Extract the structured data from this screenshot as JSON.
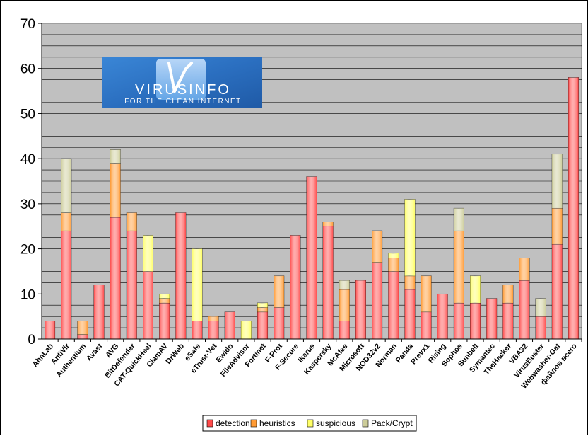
{
  "chart_data": {
    "type": "bar",
    "stacked": true,
    "title": "",
    "xlabel": "",
    "ylabel": "",
    "ylim": [
      0,
      70
    ],
    "yticks": [
      0,
      10,
      20,
      30,
      40,
      50,
      60,
      70
    ],
    "grid": true,
    "legend_position": "bottom",
    "categories": [
      "AhnLab",
      "AntiVir",
      "Authentium",
      "Avast",
      "AVG",
      "BitDefender",
      "CAT-QuickHeal",
      "ClamAV",
      "DrWeb",
      "eSafe",
      "eTrust-Vet",
      "Ewido",
      "FileAdvisor",
      "Fortinet",
      "F-Prot",
      "F-Secure",
      "Ikarus",
      "Kaspersky",
      "McAfee",
      "Microsoft",
      "NOD32v2",
      "Norman",
      "Panda",
      "Prevx1",
      "Rising",
      "Sophos",
      "Sunbelt",
      "Symantec",
      "TheHacker",
      "VBA32",
      "VirusBuster",
      "Webwasher-Gat",
      "файлов всего"
    ],
    "series": [
      {
        "name": "detection",
        "color": "#ff4a4a",
        "values": [
          4,
          24,
          1,
          12,
          27,
          24,
          15,
          8,
          28,
          4,
          4,
          6,
          0,
          6,
          7,
          23,
          36,
          25,
          4,
          13,
          17,
          15,
          11,
          6,
          10,
          8,
          8,
          9,
          8,
          13,
          5,
          21,
          58
        ]
      },
      {
        "name": "heuristics",
        "color": "#ff9a33",
        "values": [
          0,
          4,
          3,
          0,
          12,
          4,
          0,
          1,
          0,
          0,
          1,
          0,
          0,
          1,
          7,
          0,
          0,
          1,
          7,
          0,
          7,
          3,
          3,
          8,
          0,
          16,
          0,
          0,
          4,
          5,
          0,
          8,
          0
        ]
      },
      {
        "name": "suspicious",
        "color": "#ffff66",
        "values": [
          0,
          0,
          0,
          0,
          0,
          0,
          8,
          1,
          0,
          16,
          0,
          0,
          4,
          1,
          0,
          0,
          0,
          0,
          0,
          0,
          0,
          1,
          17,
          0,
          0,
          0,
          6,
          0,
          0,
          0,
          0,
          0,
          0
        ]
      },
      {
        "name": "Pack/Crypt",
        "color": "#cccc99",
        "values": [
          0,
          12,
          0,
          0,
          3,
          0,
          0,
          0,
          0,
          0,
          0,
          0,
          0,
          0,
          0,
          0,
          0,
          0,
          2,
          0,
          0,
          0,
          0,
          0,
          0,
          5,
          0,
          0,
          0,
          0,
          4,
          12,
          0
        ]
      }
    ]
  },
  "logo": {
    "name": "VIRUSINFO",
    "tagline": "FOR THE CLEAN INTERNET"
  }
}
